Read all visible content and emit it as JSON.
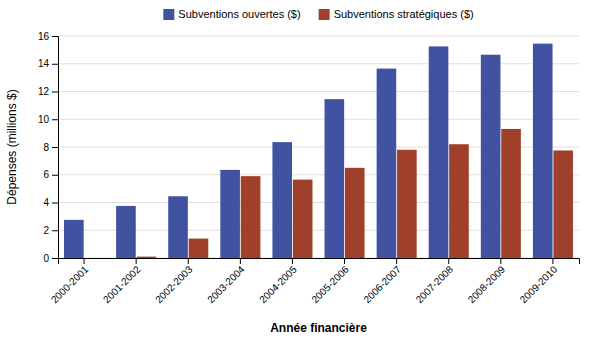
{
  "chart_data": {
    "type": "bar",
    "categories": [
      "2000-2001",
      "2001-2002",
      "2002-2003",
      "2003-2004",
      "2004-2005",
      "2005-2006",
      "2006-2007",
      "2007-2008",
      "2008-2009",
      "2009-2010"
    ],
    "series": [
      {
        "name": "Subventions ouvertes ($)",
        "color": "#4052A0",
        "values": [
          2.75,
          3.75,
          4.45,
          6.35,
          8.35,
          11.45,
          13.65,
          15.25,
          14.65,
          15.45
        ]
      },
      {
        "name": "Subventions stratégiques ($)",
        "color": "#A0402A",
        "values": [
          0.0,
          0.1,
          1.4,
          5.9,
          5.65,
          6.5,
          7.8,
          8.2,
          9.3,
          7.75
        ]
      }
    ],
    "xlabel": "Année financière",
    "ylabel": "Dépenses (millions $)",
    "ylim": [
      0,
      16
    ],
    "yticks": [
      0,
      2,
      4,
      6,
      8,
      10,
      12,
      14,
      16
    ],
    "grid": true,
    "legend": "top"
  }
}
